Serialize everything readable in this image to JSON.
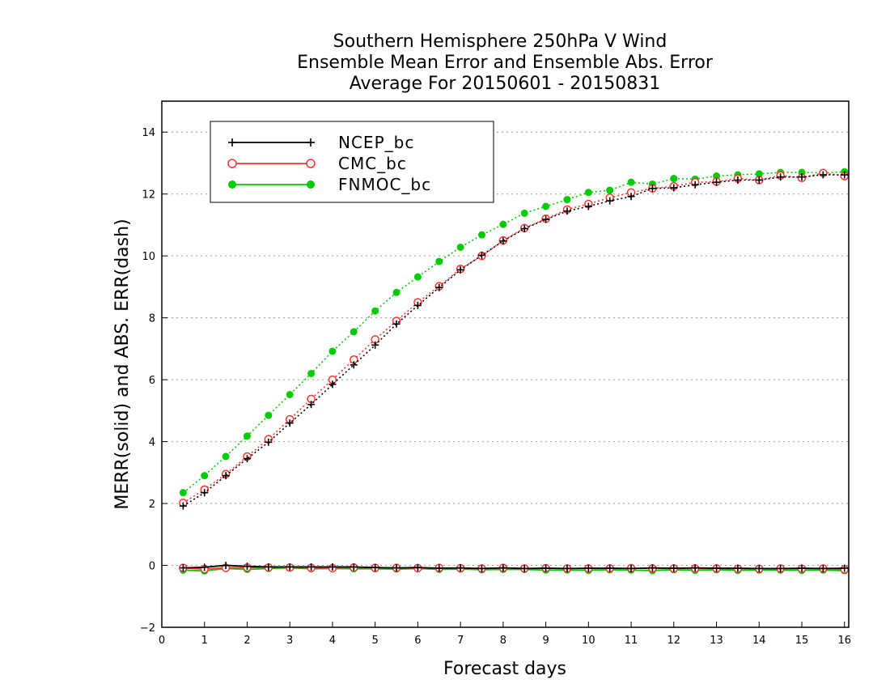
{
  "chart_data": {
    "type": "line",
    "title": [
      "Southern Hemisphere 250hPa V Wind",
      "Ensemble Mean Error and Ensemble Abs. Error",
      "Average For 20150601 - 20150831"
    ],
    "xlabel": "Forecast days",
    "ylabel": "MERR(solid) and ABS. ERR(dash)",
    "xlim": [
      0,
      16.1
    ],
    "ylim": [
      -2,
      15
    ],
    "xticks": [
      0,
      1,
      2,
      3,
      4,
      5,
      6,
      7,
      8,
      9,
      10,
      11,
      12,
      13,
      14,
      15,
      16
    ],
    "yticks": [
      -2,
      0,
      2,
      4,
      6,
      8,
      10,
      12,
      14
    ],
    "grid": true,
    "legend_position": "top-left",
    "x": [
      0.5,
      1.0,
      1.5,
      2.0,
      2.5,
      3.0,
      3.5,
      4.0,
      4.5,
      5.0,
      5.5,
      6.0,
      6.5,
      7.0,
      7.5,
      8.0,
      8.5,
      9.0,
      9.5,
      10.0,
      10.5,
      11.0,
      11.5,
      12.0,
      12.5,
      13.0,
      13.5,
      14.0,
      14.5,
      15.0,
      15.5,
      16.0
    ],
    "series": [
      {
        "name": "NCEP_bc",
        "color": "#000000",
        "marker": "plus",
        "abs_err": [
          1.92,
          2.35,
          2.9,
          3.45,
          3.98,
          4.6,
          5.2,
          5.85,
          6.48,
          7.12,
          7.8,
          8.4,
          8.98,
          9.55,
          10.02,
          10.48,
          10.88,
          11.18,
          11.45,
          11.6,
          11.78,
          11.92,
          12.18,
          12.2,
          12.3,
          12.38,
          12.45,
          12.45,
          12.55,
          12.55,
          12.62,
          12.62
        ],
        "mean_err": [
          -0.08,
          -0.06,
          0.0,
          -0.03,
          -0.05,
          -0.05,
          -0.05,
          -0.05,
          -0.05,
          -0.07,
          -0.08,
          -0.07,
          -0.09,
          -0.08,
          -0.1,
          -0.08,
          -0.1,
          -0.09,
          -0.1,
          -0.09,
          -0.09,
          -0.1,
          -0.08,
          -0.09,
          -0.08,
          -0.09,
          -0.09,
          -0.1,
          -0.1,
          -0.09,
          -0.1,
          -0.09
        ]
      },
      {
        "name": "CMC_bc",
        "color": "#ff3030",
        "marker": "open-circle",
        "abs_err": [
          2.02,
          2.45,
          2.95,
          3.52,
          4.08,
          4.72,
          5.38,
          6.0,
          6.65,
          7.3,
          7.9,
          8.5,
          9.02,
          9.58,
          10.0,
          10.5,
          10.9,
          11.2,
          11.5,
          11.68,
          11.88,
          12.05,
          12.18,
          12.25,
          12.38,
          12.4,
          12.5,
          12.45,
          12.6,
          12.52,
          12.68,
          12.58
        ],
        "mean_err": [
          -0.08,
          -0.12,
          -0.08,
          -0.07,
          -0.07,
          -0.07,
          -0.08,
          -0.09,
          -0.07,
          -0.08,
          -0.08,
          -0.09,
          -0.08,
          -0.09,
          -0.1,
          -0.08,
          -0.1,
          -0.09,
          -0.1,
          -0.1,
          -0.1,
          -0.09,
          -0.1,
          -0.1,
          -0.1,
          -0.1,
          -0.11,
          -0.11,
          -0.1,
          -0.11,
          -0.1,
          -0.13
        ]
      },
      {
        "name": "FNMOC_bc",
        "color": "#00cc00",
        "marker": "filled-circle",
        "abs_err": [
          2.35,
          2.9,
          3.52,
          4.18,
          4.85,
          5.52,
          6.2,
          6.92,
          7.55,
          8.22,
          8.82,
          9.32,
          9.82,
          10.28,
          10.68,
          11.02,
          11.38,
          11.6,
          11.82,
          12.05,
          12.12,
          12.38,
          12.32,
          12.5,
          12.48,
          12.58,
          12.62,
          12.65,
          12.7,
          12.7,
          12.68,
          12.72
        ],
        "mean_err": [
          -0.15,
          -0.18,
          -0.1,
          -0.13,
          -0.1,
          -0.08,
          -0.11,
          -0.1,
          -0.11,
          -0.11,
          -0.12,
          -0.1,
          -0.13,
          -0.12,
          -0.14,
          -0.13,
          -0.13,
          -0.15,
          -0.15,
          -0.16,
          -0.14,
          -0.15,
          -0.17,
          -0.14,
          -0.16,
          -0.14,
          -0.16,
          -0.15,
          -0.15,
          -0.16,
          -0.15,
          -0.17
        ]
      }
    ]
  }
}
